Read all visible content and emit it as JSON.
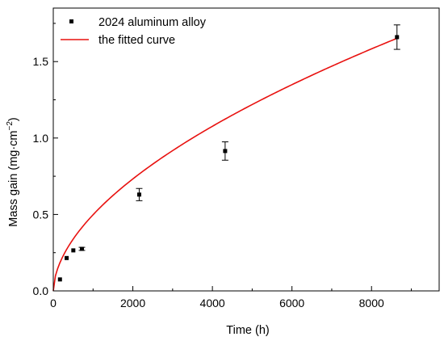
{
  "chart_data": {
    "type": "scatter",
    "xlabel": "Time (h)",
    "ylabel": "Mass gain (mg·cm",
    "ylabel_superscript": "−2",
    "ylabel_suffix": ")",
    "xlim": [
      0,
      9700
    ],
    "ylim": [
      0,
      1.85
    ],
    "xticks": [
      0,
      2000,
      4000,
      6000,
      8000
    ],
    "xtick_labels": [
      "0",
      "2000",
      "4000",
      "6000",
      "8000"
    ],
    "yticks": [
      0,
      0.5,
      1.0,
      1.5
    ],
    "ytick_labels": [
      "0.0",
      "0.5",
      "1.0",
      "1.5"
    ],
    "grid": false,
    "legend_position": "top-left",
    "series": [
      {
        "name": "2024 aluminum alloy",
        "kind": "markers",
        "color": "#000000",
        "points": [
          {
            "x": 168,
            "y": 0.075,
            "err": 0
          },
          {
            "x": 336,
            "y": 0.215,
            "err": 0
          },
          {
            "x": 504,
            "y": 0.265,
            "err": 0
          },
          {
            "x": 720,
            "y": 0.275,
            "err": 0.01
          },
          {
            "x": 2160,
            "y": 0.63,
            "err": 0.04
          },
          {
            "x": 4320,
            "y": 0.915,
            "err": 0.06
          },
          {
            "x": 8640,
            "y": 1.66,
            "err": 0.08
          }
        ]
      },
      {
        "name": "the fitted curve",
        "kind": "line",
        "color": "#e8110f",
        "x_start": 0,
        "x_end": 8640,
        "model": {
          "coefficient": 0.0107,
          "exponent": 0.556
        }
      }
    ]
  }
}
